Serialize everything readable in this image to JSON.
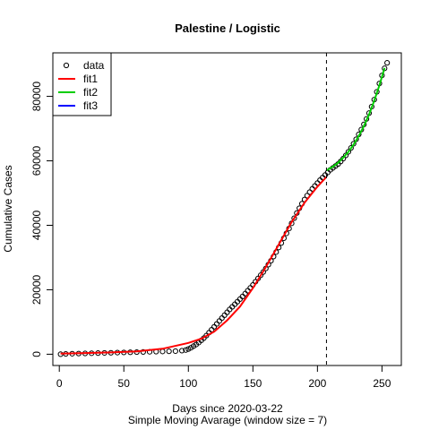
{
  "chart_data": {
    "type": "scatter",
    "title": "Palestine / Logistic",
    "xlabel": "Days since 2020-03-22",
    "xlabel2": "Simple Moving Avarage (window size = 7)",
    "ylabel": "Cumulative Cases",
    "xlim": [
      -5,
      265
    ],
    "ylim": [
      -3500,
      93500
    ],
    "x_ticks": [
      0,
      50,
      100,
      150,
      200,
      250
    ],
    "y_ticks": [
      0,
      20000,
      40000,
      60000,
      80000
    ],
    "grid": false,
    "legend_position": "top-left",
    "vline": {
      "x": 207,
      "style": "dashed",
      "color": "#000000"
    },
    "legend": [
      {
        "label": "data",
        "kind": "point",
        "color": "#000000"
      },
      {
        "label": "fit1",
        "kind": "line",
        "color": "#ff0000"
      },
      {
        "label": "fit2",
        "kind": "line",
        "color": "#00cd00"
      },
      {
        "label": "fit3",
        "kind": "line",
        "color": "#0000ff"
      }
    ],
    "data_points": [
      [
        1,
        0
      ],
      [
        5,
        100
      ],
      [
        10,
        150
      ],
      [
        15,
        200
      ],
      [
        20,
        250
      ],
      [
        25,
        300
      ],
      [
        30,
        350
      ],
      [
        35,
        400
      ],
      [
        40,
        450
      ],
      [
        45,
        500
      ],
      [
        50,
        550
      ],
      [
        55,
        600
      ],
      [
        60,
        650
      ],
      [
        65,
        700
      ],
      [
        70,
        750
      ],
      [
        75,
        800
      ],
      [
        80,
        850
      ],
      [
        85,
        900
      ],
      [
        90,
        950
      ],
      [
        95,
        1100
      ],
      [
        98,
        1300
      ],
      [
        100,
        1600
      ],
      [
        102,
        2000
      ],
      [
        104,
        2500
      ],
      [
        106,
        3000
      ],
      [
        108,
        3600
      ],
      [
        110,
        4300
      ],
      [
        112,
        5000
      ],
      [
        114,
        5800
      ],
      [
        116,
        6700
      ],
      [
        118,
        7600
      ],
      [
        120,
        8500
      ],
      [
        122,
        9400
      ],
      [
        124,
        10300
      ],
      [
        126,
        11200
      ],
      [
        128,
        12100
      ],
      [
        130,
        13000
      ],
      [
        132,
        13900
      ],
      [
        134,
        14700
      ],
      [
        136,
        15500
      ],
      [
        138,
        16300
      ],
      [
        140,
        17100
      ],
      [
        142,
        17900
      ],
      [
        144,
        18800
      ],
      [
        146,
        19700
      ],
      [
        148,
        20600
      ],
      [
        150,
        21500
      ],
      [
        152,
        22500
      ],
      [
        154,
        23500
      ],
      [
        156,
        24500
      ],
      [
        158,
        25500
      ],
      [
        160,
        26600
      ],
      [
        162,
        27800
      ],
      [
        164,
        29000
      ],
      [
        166,
        30300
      ],
      [
        168,
        31700
      ],
      [
        170,
        33100
      ],
      [
        172,
        34500
      ],
      [
        174,
        36000
      ],
      [
        176,
        37500
      ],
      [
        178,
        39000
      ],
      [
        180,
        40600
      ],
      [
        182,
        42200
      ],
      [
        184,
        43800
      ],
      [
        186,
        45300
      ],
      [
        188,
        46700
      ],
      [
        190,
        48000
      ],
      [
        192,
        49200
      ],
      [
        194,
        50300
      ],
      [
        196,
        51300
      ],
      [
        198,
        52200
      ],
      [
        200,
        53100
      ],
      [
        202,
        54000
      ],
      [
        204,
        54800
      ],
      [
        206,
        55600
      ],
      [
        208,
        56400
      ],
      [
        210,
        57200
      ],
      [
        212,
        57800
      ],
      [
        214,
        58400
      ],
      [
        216,
        59000
      ],
      [
        218,
        59800
      ],
      [
        220,
        60700
      ],
      [
        222,
        61700
      ],
      [
        224,
        62800
      ],
      [
        226,
        64000
      ],
      [
        228,
        65300
      ],
      [
        230,
        66700
      ],
      [
        232,
        68200
      ],
      [
        234,
        69700
      ],
      [
        236,
        71300
      ],
      [
        238,
        73000
      ],
      [
        240,
        74800
      ],
      [
        242,
        76800
      ],
      [
        244,
        79000
      ],
      [
        246,
        81400
      ],
      [
        248,
        84000
      ],
      [
        250,
        86500
      ],
      [
        252,
        88700
      ],
      [
        254,
        90400
      ]
    ],
    "series": [
      {
        "name": "fit1",
        "color": "#ff0000",
        "points": [
          [
            1,
            200
          ],
          [
            20,
            350
          ],
          [
            40,
            550
          ],
          [
            60,
            900
          ],
          [
            80,
            1700
          ],
          [
            100,
            3500
          ],
          [
            110,
            4800
          ],
          [
            120,
            7000
          ],
          [
            130,
            10500
          ],
          [
            140,
            14800
          ],
          [
            150,
            20500
          ],
          [
            160,
            27000
          ],
          [
            170,
            34000
          ],
          [
            180,
            41000
          ],
          [
            190,
            47000
          ],
          [
            200,
            52000
          ],
          [
            207,
            55000
          ]
        ]
      },
      {
        "name": "fit2",
        "color": "#00cd00",
        "points": [
          [
            207,
            57000
          ],
          [
            212,
            58200
          ],
          [
            216,
            59400
          ],
          [
            220,
            61000
          ],
          [
            224,
            62800
          ],
          [
            228,
            65000
          ],
          [
            232,
            67700
          ],
          [
            236,
            70800
          ],
          [
            240,
            74400
          ],
          [
            244,
            78600
          ],
          [
            248,
            83400
          ],
          [
            252,
            88800
          ]
        ]
      }
    ]
  }
}
